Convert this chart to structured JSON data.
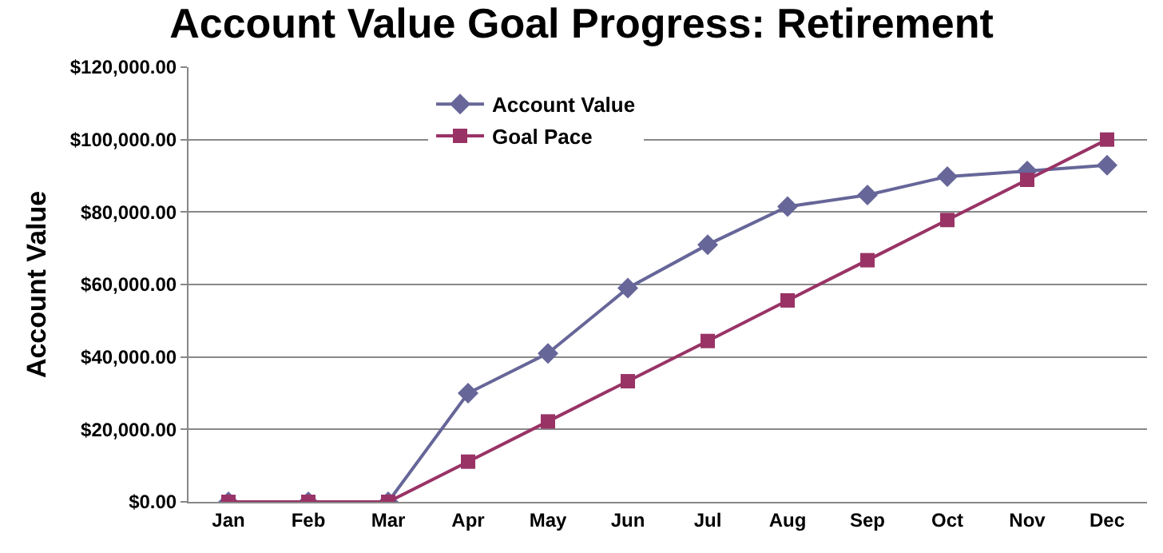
{
  "chart_data": {
    "type": "line",
    "title": "Account Value Goal Progress: Retirement",
    "ylabel": "Account Value",
    "categories": [
      "Jan",
      "Feb",
      "Mar",
      "Apr",
      "May",
      "Jun",
      "Jul",
      "Aug",
      "Sep",
      "Oct",
      "Nov",
      "Dec"
    ],
    "series": [
      {
        "name": "Account Value",
        "color": "#666699",
        "marker": "diamond",
        "values": [
          0,
          0,
          0,
          30000,
          41000,
          59000,
          71000,
          81500,
          84700,
          89800,
          91300,
          92900
        ]
      },
      {
        "name": "Goal Pace",
        "color": "#993366",
        "marker": "square",
        "values": [
          0,
          0,
          0,
          11100,
          22200,
          33300,
          44400,
          55600,
          66700,
          77800,
          88900,
          100000
        ]
      }
    ],
    "ylim": [
      0,
      120000
    ],
    "yticks": [
      {
        "value": 0,
        "label": "$0.00"
      },
      {
        "value": 20000,
        "label": "$20,000.00"
      },
      {
        "value": 40000,
        "label": "$40,000.00"
      },
      {
        "value": 60000,
        "label": "$60,000.00"
      },
      {
        "value": 80000,
        "label": "$80,000.00"
      },
      {
        "value": 100000,
        "label": "$100,000.00"
      },
      {
        "value": 120000,
        "label": "$120,000.00"
      }
    ],
    "grid": "y",
    "legend": "top",
    "line_style": "solid"
  }
}
